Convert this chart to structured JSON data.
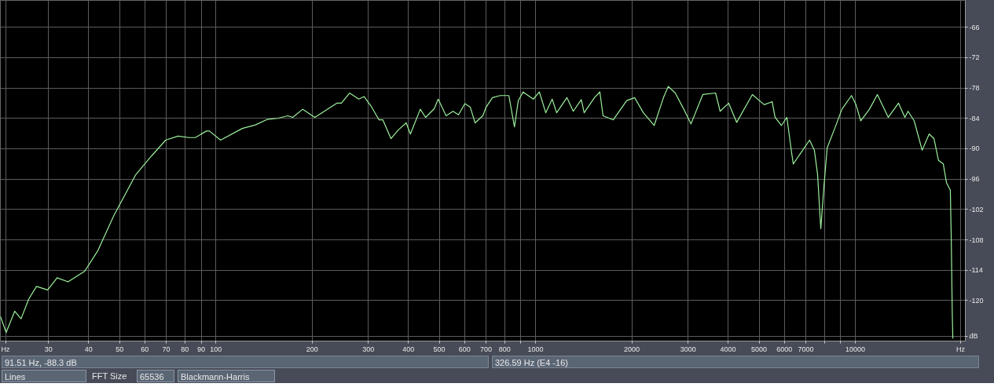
{
  "chart_data": {
    "type": "line",
    "log": "x",
    "grid": true,
    "marker": "none",
    "line_style": "solid",
    "xlim": [
      21.2,
      22080
    ],
    "ylim": [
      -128,
      -60.7
    ],
    "xticks": [
      {
        "value": 22,
        "label": "Hz"
      },
      30,
      40,
      50,
      60,
      70,
      80,
      90,
      100,
      200,
      300,
      400,
      500,
      600,
      700,
      800,
      {
        "value": 900,
        "label": null
      },
      1000,
      2000,
      3000,
      4000,
      5000,
      6000,
      7000,
      {
        "value": 8000,
        "label": null
      },
      {
        "value": 9000,
        "label": null
      },
      10000,
      {
        "value": 21340,
        "label": "Hz"
      }
    ],
    "yticks": [
      -66,
      -72,
      -78,
      -84,
      -90,
      -96,
      -102,
      -108,
      -114,
      -120,
      {
        "value": -127,
        "label": "dB"
      }
    ],
    "x": [
      21.2,
      22.1,
      23.5,
      24.6,
      26.0,
      27.5,
      29.8,
      31.9,
      34.5,
      38.9,
      42.8,
      48.0,
      56.1,
      63.0,
      69.7,
      76.2,
      82.4,
      86.3,
      93.5,
      95.5,
      103.5,
      121,
      133,
      145,
      156,
      168,
      174,
      187,
      204,
      239,
      247,
      262,
      280,
      291,
      306,
      324,
      333,
      353,
      372,
      394,
      406,
      436,
      453,
      482,
      496,
      525,
      552,
      574,
      601,
      625,
      647,
      684,
      700,
      733,
      775,
      825,
      859,
      883,
      914,
      984,
      1028,
      1076,
      1127,
      1164,
      1253,
      1312,
      1390,
      1419,
      1528,
      1589,
      1626,
      1750,
      1928,
      2041,
      2173,
      2350,
      2512,
      2600,
      2735,
      2897,
      3062,
      3334,
      3656,
      3776,
      4018,
      4256,
      4764,
      5188,
      5495,
      5610,
      5875,
      6109,
      6324,
      6397,
      7194,
      7447,
      7621,
      7798,
      7980,
      8166,
      8730,
      9080,
      9727,
      10050,
      10400,
      11070,
      11720,
      12680,
      13650,
      14290,
      14620,
      15280,
      16180,
      17020,
      17620,
      18200,
      18840,
      19280,
      19820,
      19950,
      20100,
      20180
    ],
    "series": [
      {
        "color": "#9cf09c",
        "values": [
          -123.1,
          -126.3,
          -122.1,
          -123.6,
          -119.7,
          -117.2,
          -117.9,
          -115.5,
          -116.3,
          -114.2,
          -110.1,
          -103.2,
          -95.2,
          -91.4,
          -88.3,
          -87.5,
          -87.8,
          -87.8,
          -86.5,
          -86.5,
          -88.3,
          -86.0,
          -85.3,
          -84.2,
          -84.0,
          -83.5,
          -83.8,
          -82.2,
          -83.8,
          -81.0,
          -81.0,
          -79.0,
          -80.2,
          -79.7,
          -81.6,
          -84.3,
          -84.3,
          -88.0,
          -86.3,
          -84.9,
          -87.1,
          -82.2,
          -83.8,
          -82.1,
          -80.2,
          -83.5,
          -82.6,
          -83.3,
          -81.1,
          -81.8,
          -84.9,
          -83.5,
          -81.8,
          -79.9,
          -79.5,
          -79.5,
          -85.7,
          -80.5,
          -78.8,
          -80.2,
          -78.8,
          -82.9,
          -80.2,
          -82.9,
          -79.9,
          -82.6,
          -80.3,
          -82.9,
          -79.9,
          -78.8,
          -83.5,
          -84.3,
          -80.5,
          -79.9,
          -82.9,
          -85.4,
          -79.9,
          -77.7,
          -79.0,
          -82.0,
          -85.1,
          -79.3,
          -79.0,
          -82.6,
          -81.0,
          -84.8,
          -79.3,
          -81.3,
          -80.7,
          -83.8,
          -85.4,
          -83.8,
          -90.9,
          -93.0,
          -88.3,
          -90.3,
          -95.1,
          -105.8,
          -97.3,
          -89.8,
          -85.1,
          -82.2,
          -79.5,
          -81.3,
          -84.5,
          -82.2,
          -79.3,
          -83.8,
          -81.0,
          -83.8,
          -82.6,
          -84.5,
          -90.3,
          -87.1,
          -88.0,
          -92.3,
          -93.0,
          -96.7,
          -98.2,
          -107.4,
          -122.4,
          -127.5
        ]
      }
    ],
    "annotations": [
      "91.51 Hz,  -88.3 dB",
      "326.59 Hz (E4 -16)",
      "Lines",
      "FFT Size",
      "65536",
      "Blackmann-Harris"
    ]
  }
}
